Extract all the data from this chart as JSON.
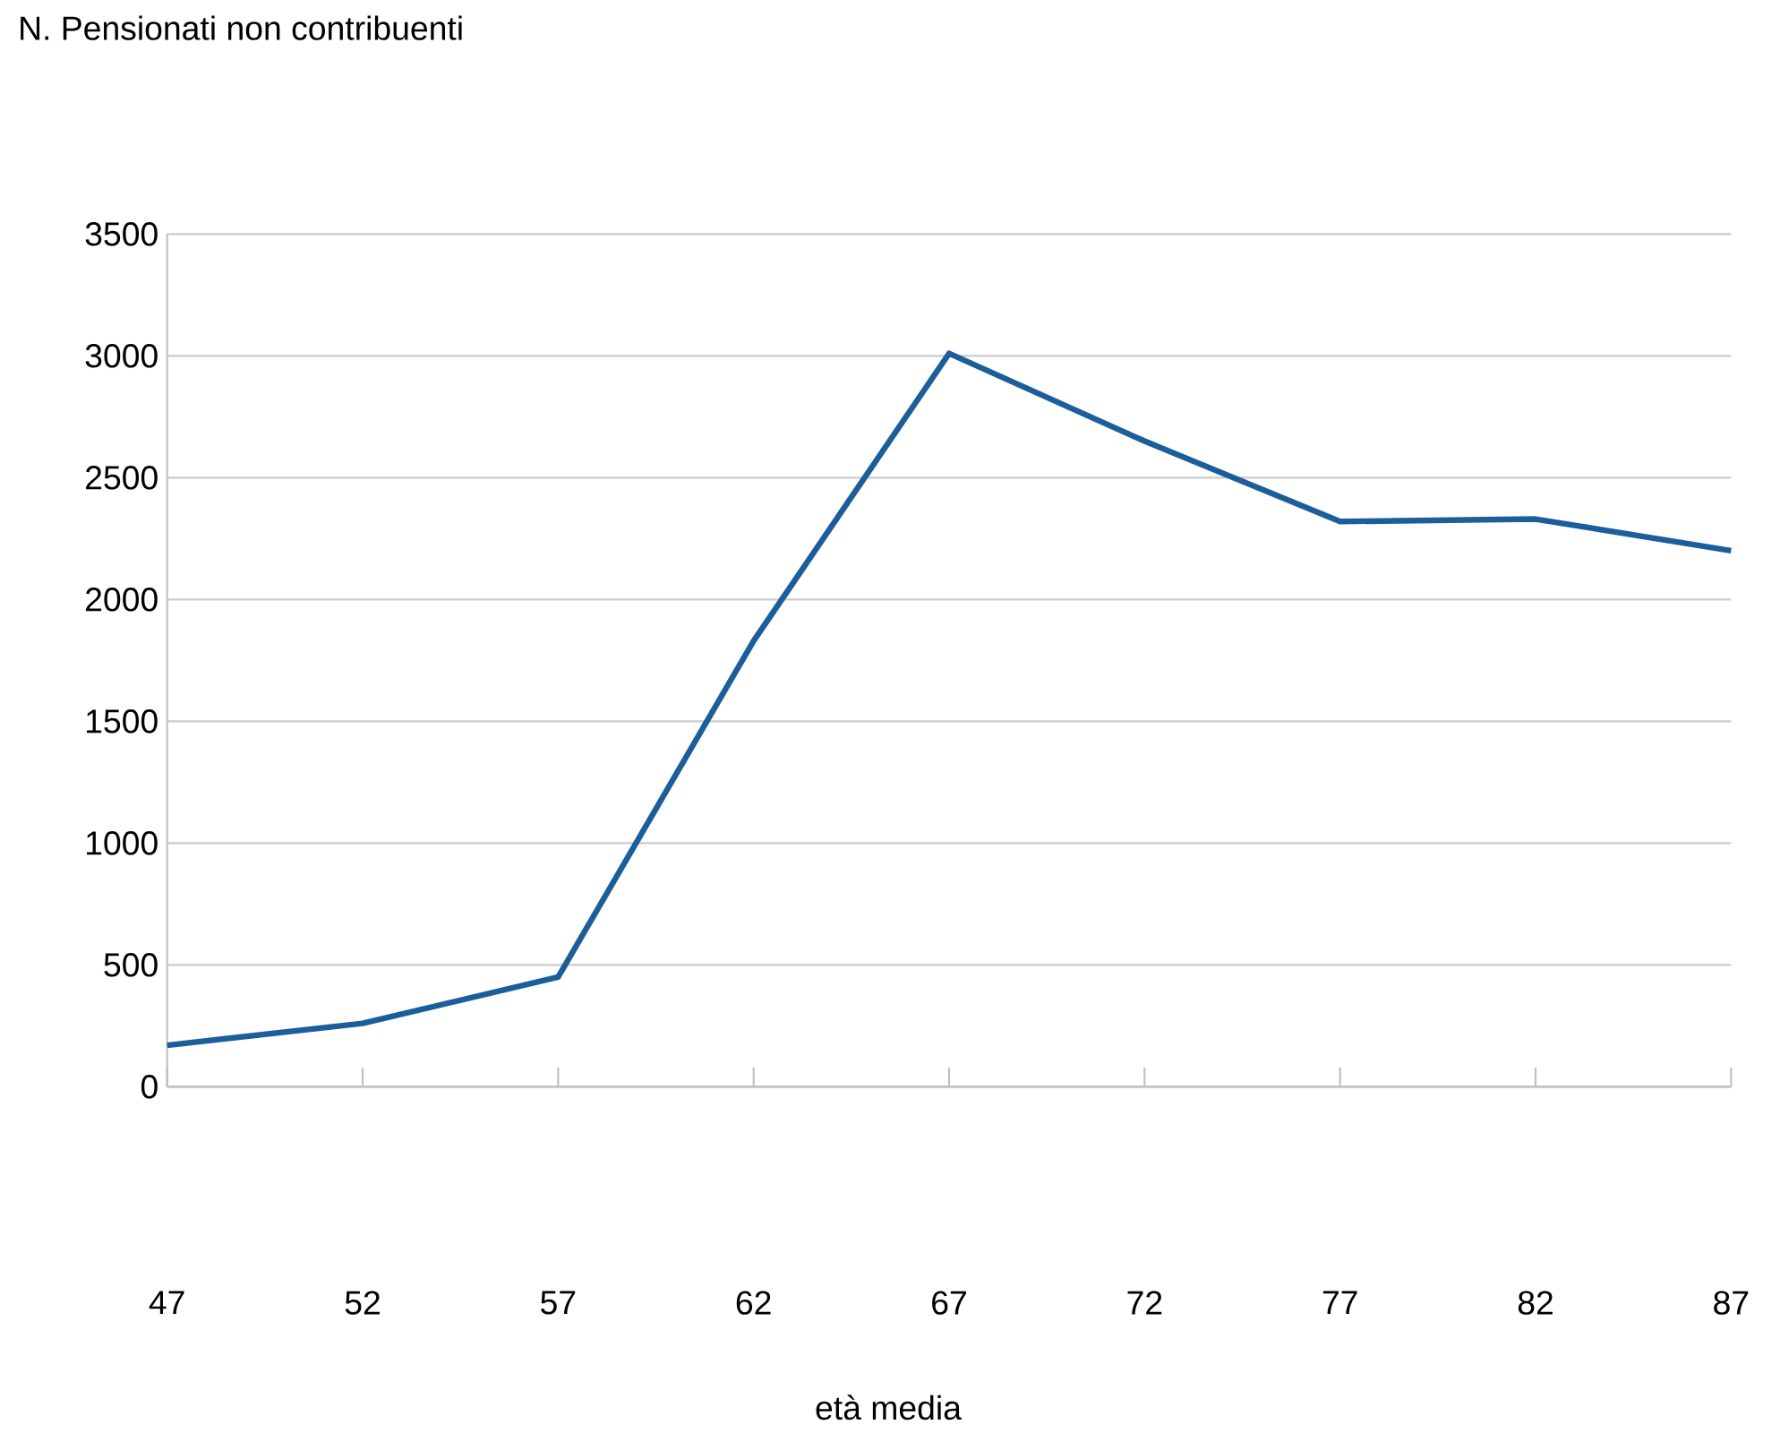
{
  "chart_data": {
    "type": "line",
    "title": "N. Pensionati non contribuenti",
    "xlabel": "età media",
    "x": [
      47,
      52,
      57,
      62,
      67,
      72,
      77,
      82,
      87
    ],
    "series": [
      {
        "color": "#1b5e9b",
        "values": [
          170,
          260,
          450,
          1830,
          3010,
          2650,
          2320,
          2330,
          2200
        ]
      }
    ],
    "xlim": [
      47,
      87
    ],
    "xticks": [
      47,
      52,
      57,
      62,
      67,
      72,
      77,
      82,
      87
    ],
    "ylim": [
      0,
      3500
    ],
    "yticks": [
      0,
      500,
      1000,
      1500,
      2000,
      2500,
      3000,
      3500
    ],
    "grid": "y",
    "marker": "none",
    "line_style": "solid"
  }
}
